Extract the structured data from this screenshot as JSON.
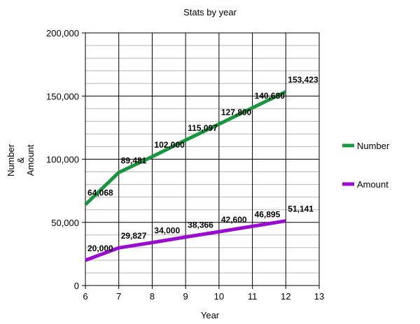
{
  "chart_data": {
    "type": "line",
    "title": "Stats by year",
    "xlabel": "Year",
    "ylabel_lines": [
      "Number",
      "&",
      "Amount"
    ],
    "x": [
      6,
      7,
      8,
      9,
      10,
      11,
      12
    ],
    "xlim": [
      6,
      13
    ],
    "x_ticks": [
      6,
      7,
      8,
      9,
      10,
      11,
      12,
      13
    ],
    "ylim": [
      0,
      200000
    ],
    "y_ticks": [
      0,
      50000,
      100000,
      150000,
      200000
    ],
    "y_tick_labels": [
      "0",
      "50,000",
      "100,000",
      "150,000",
      "200,000"
    ],
    "grid": true,
    "legend_position": "right",
    "series": [
      {
        "name": "Number",
        "color": "#1a9641",
        "values": [
          64068,
          89481,
          102000,
          115097,
          127800,
          140680,
          153423
        ],
        "labels": [
          "64,068",
          "89,481",
          "102,000",
          "115,097",
          "127,800",
          "140,680",
          "153,423"
        ]
      },
      {
        "name": "Amount",
        "color": "#9a0ccf",
        "values": [
          20000,
          29827,
          34000,
          38366,
          42600,
          46895,
          51141
        ],
        "labels": [
          "20,000",
          "29,827",
          "34,000",
          "38,366",
          "42,600",
          "46,895",
          "51,141"
        ]
      }
    ]
  }
}
